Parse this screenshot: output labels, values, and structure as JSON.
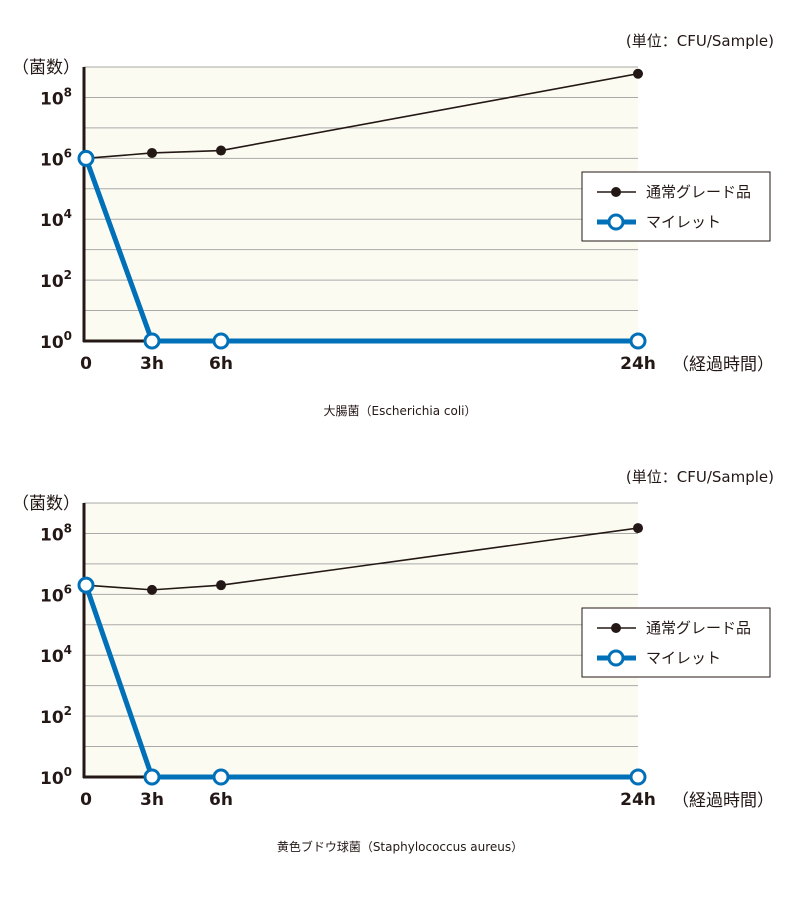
{
  "chart_data": [
    {
      "type": "line",
      "caption": "大腸菌（Escherichia coli）",
      "unit_label": "(単位：CFU/Sample)",
      "ylabel": "（菌数）",
      "xlabel": "（経過時間）",
      "y_scale": "log",
      "ylim": [
        1,
        1000000000
      ],
      "y_ticks": [
        {
          "value": 1,
          "base": "10",
          "exp": "0"
        },
        {
          "value": 100,
          "base": "10",
          "exp": "2"
        },
        {
          "value": 10000,
          "base": "10",
          "exp": "4"
        },
        {
          "value": 1000000,
          "base": "10",
          "exp": "6"
        },
        {
          "value": 100000000,
          "base": "10",
          "exp": "8"
        }
      ],
      "x_ticks": [
        "0",
        "3h",
        "6h",
        "24h"
      ],
      "x": [
        0,
        3,
        6,
        24
      ],
      "grid": true,
      "legend_position": "right",
      "series": [
        {
          "name": "通常グレード品",
          "values": [
            1000000,
            1500000,
            1800000,
            600000000
          ],
          "color": "#231815",
          "marker": "filled-circle"
        },
        {
          "name": "マイレット",
          "values": [
            1000000,
            1,
            1,
            1
          ],
          "color": "#0070b8",
          "marker": "open-circle"
        }
      ]
    },
    {
      "type": "line",
      "caption": "黄色ブドウ球菌（Staphylococcus aureus）",
      "unit_label": "(単位：CFU/Sample)",
      "ylabel": "（菌数）",
      "xlabel": "（経過時間）",
      "y_scale": "log",
      "ylim": [
        1,
        1000000000
      ],
      "y_ticks": [
        {
          "value": 1,
          "base": "10",
          "exp": "0"
        },
        {
          "value": 100,
          "base": "10",
          "exp": "2"
        },
        {
          "value": 10000,
          "base": "10",
          "exp": "4"
        },
        {
          "value": 1000000,
          "base": "10",
          "exp": "6"
        },
        {
          "value": 100000000,
          "base": "10",
          "exp": "8"
        }
      ],
      "x_ticks": [
        "0",
        "3h",
        "6h",
        "24h"
      ],
      "x": [
        0,
        3,
        6,
        24
      ],
      "grid": true,
      "legend_position": "right",
      "series": [
        {
          "name": "通常グレード品",
          "values": [
            2000000,
            1400000,
            2000000,
            150000000
          ],
          "color": "#231815",
          "marker": "filled-circle"
        },
        {
          "name": "マイレット",
          "values": [
            2000000,
            1,
            1,
            1
          ],
          "color": "#0070b8",
          "marker": "open-circle"
        }
      ]
    }
  ]
}
